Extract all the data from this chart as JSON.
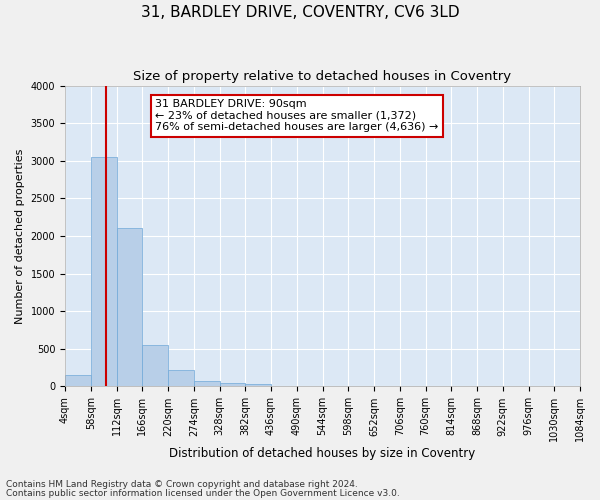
{
  "title1": "31, BARDLEY DRIVE, COVENTRY, CV6 3LD",
  "title2": "Size of property relative to detached houses in Coventry",
  "xlabel": "Distribution of detached houses by size in Coventry",
  "ylabel": "Number of detached properties",
  "bin_edges": [
    4,
    58,
    112,
    166,
    220,
    274,
    328,
    382,
    436,
    490,
    544,
    598,
    652,
    706,
    760,
    814,
    868,
    922,
    976,
    1030,
    1084
  ],
  "bar_heights": [
    150,
    3050,
    2100,
    550,
    220,
    75,
    40,
    30,
    10,
    8,
    5,
    3,
    2,
    1,
    1,
    1,
    0,
    0,
    0,
    0
  ],
  "bar_color": "#b8cfe8",
  "bar_edge_color": "#6fa8d8",
  "vline_x": 90,
  "vline_color": "#cc0000",
  "annotation_line1": "31 BARDLEY DRIVE: 90sqm",
  "annotation_line2": "← 23% of detached houses are smaller (1,372)",
  "annotation_line3": "76% of semi-detached houses are larger (4,636) →",
  "annotation_box_color": "#ffffff",
  "annotation_box_edge": "#cc0000",
  "ylim": [
    0,
    4000
  ],
  "yticks": [
    0,
    500,
    1000,
    1500,
    2000,
    2500,
    3000,
    3500,
    4000
  ],
  "bg_color": "#dce8f5",
  "footnote1": "Contains HM Land Registry data © Crown copyright and database right 2024.",
  "footnote2": "Contains public sector information licensed under the Open Government Licence v3.0.",
  "title1_fontsize": 11,
  "title2_fontsize": 9.5,
  "xlabel_fontsize": 8.5,
  "ylabel_fontsize": 8,
  "tick_fontsize": 7,
  "annot_fontsize": 8,
  "footnote_fontsize": 6.5
}
